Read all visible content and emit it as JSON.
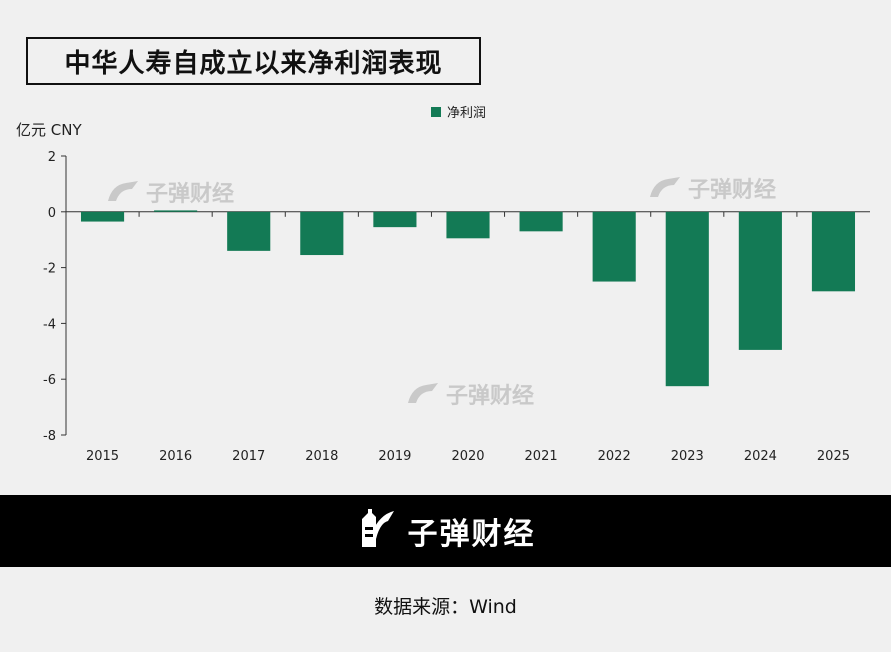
{
  "title": "中华人寿自成立以来净利润表现",
  "brand": "子弹财经",
  "source": "数据来源：Wind",
  "colors": {
    "bar": "#137a55",
    "band": "#000000",
    "background": "#f0f0f0"
  },
  "icons": {
    "logo": "bullet-brand-logo-icon"
  },
  "chart_data": {
    "type": "bar",
    "title": "中华人寿自成立以来净利润表现",
    "unit_label": "亿元 CNY",
    "legend": "净利润",
    "legend_position": "top-center",
    "categories": [
      "2015",
      "2016",
      "2017",
      "2018",
      "2019",
      "2020",
      "2021",
      "2022",
      "2023",
      "2024",
      "2025"
    ],
    "series": [
      {
        "name": "净利润",
        "values": [
          -0.35,
          0.05,
          -1.4,
          -1.55,
          -0.55,
          -0.95,
          -0.7,
          -2.5,
          -6.25,
          -4.95,
          -2.85
        ]
      }
    ],
    "ylim": [
      -8,
      2
    ],
    "yticks": [
      2,
      0,
      -2,
      -4,
      -6,
      -8
    ],
    "grid": false
  }
}
